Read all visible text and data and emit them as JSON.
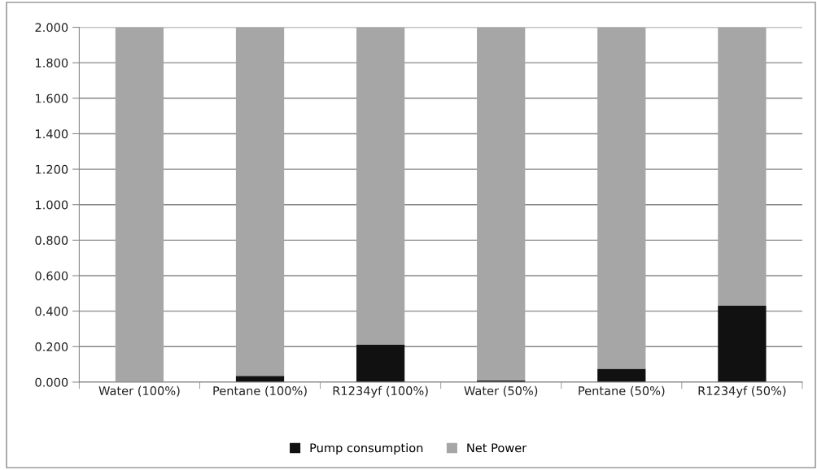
{
  "chart_data": {
    "type": "bar",
    "stacked": true,
    "categories": [
      "Water (100%)",
      "Pentane (100%)",
      "R1234yf (100%)",
      "Water (50%)",
      "Pentane (50%)",
      "R1234yf (50%)"
    ],
    "series": [
      {
        "name": "Pump consumption",
        "color": "#111111",
        "values": [
          0,
          0.035,
          0.21,
          0.01,
          0.075,
          0.43
        ]
      },
      {
        "name": "Net Power",
        "color": "#a6a6a6",
        "values": [
          2.0,
          1.965,
          1.79,
          1.99,
          1.925,
          1.57
        ]
      }
    ],
    "ylim": [
      0,
      2
    ],
    "yticks": [
      {
        "value": 0,
        "label": "0.000"
      },
      {
        "value": 0.2,
        "label": "0.200"
      },
      {
        "value": 0.4,
        "label": "0.400"
      },
      {
        "value": 0.6,
        "label": "0.600"
      },
      {
        "value": 0.8,
        "label": "0.800"
      },
      {
        "value": 1.0,
        "label": "1.000"
      },
      {
        "value": 1.2,
        "label": "1.200"
      },
      {
        "value": 1.4,
        "label": "1.400"
      },
      {
        "value": 1.6,
        "label": "1.600"
      },
      {
        "value": 1.8,
        "label": "1.800"
      },
      {
        "value": 2.0,
        "label": "2.000"
      }
    ],
    "grid": "y",
    "legend": "bottom"
  }
}
